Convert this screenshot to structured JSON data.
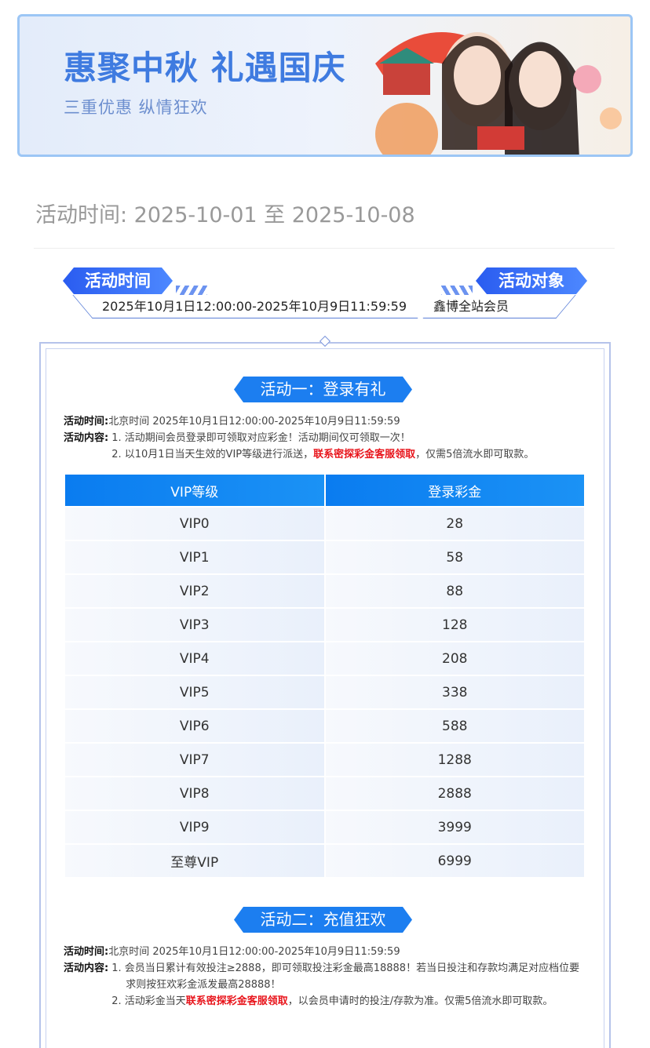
{
  "banner": {
    "title": "惠聚中秋 礼遇国庆",
    "subtitle": "三重优惠 纵情狂欢"
  },
  "activity_date": "活动时间: 2025-10-01 至 2025-10-08",
  "tags": {
    "time_label": "活动时间",
    "time_value": "2025年10月1日12:00:00-2025年10月9日11:59:59",
    "target_label": "活动对象",
    "target_value": "鑫博全站会员"
  },
  "activity1": {
    "title": "活动一：登录有礼",
    "time_label": "活动时间:",
    "time_value": "北京时间 2025年10月1日12:00:00-2025年10月9日11:59:59",
    "content_label": "活动内容:",
    "item1": "1. 活动期间会员登录即可领取对应彩金！活动期间仅可领取一次！",
    "item2_pre": "2. 以10月1日当天生效的VIP等级进行派送，",
    "item2_red": "联系密探彩金客服领取",
    "item2_post": "，仅需5倍流水即可取款。",
    "table": {
      "headers": [
        "VIP等级",
        "登录彩金"
      ],
      "rows": [
        [
          "VIP0",
          "28"
        ],
        [
          "VIP1",
          "58"
        ],
        [
          "VIP2",
          "88"
        ],
        [
          "VIP3",
          "128"
        ],
        [
          "VIP4",
          "208"
        ],
        [
          "VIP5",
          "338"
        ],
        [
          "VIP6",
          "588"
        ],
        [
          "VIP7",
          "1288"
        ],
        [
          "VIP8",
          "2888"
        ],
        [
          "VIP9",
          "3999"
        ],
        [
          "至尊VIP",
          "6999"
        ]
      ]
    }
  },
  "activity2": {
    "title": "活动二：充值狂欢",
    "time_label": "活动时间:",
    "time_value": "北京时间 2025年10月1日12:00:00-2025年10月9日11:59:59",
    "content_label": "活动内容:",
    "item1": "1. 会员当日累计有效投注≥2888，即可领取投注彩金最高18888！若当日投注和存款均满足对应档位要求则按狂欢彩金派发最高28888！",
    "item2_pre": "2. 活动彩金当天",
    "item2_red": "联系密探彩金客服领取",
    "item2_post": "，以会员申请时的投注/存款为准。仅需5倍流水即可取款。"
  },
  "colors": {
    "primary": "#1c7ef0",
    "accent_red": "#e8141b",
    "banner_title": "#3f7be0"
  }
}
